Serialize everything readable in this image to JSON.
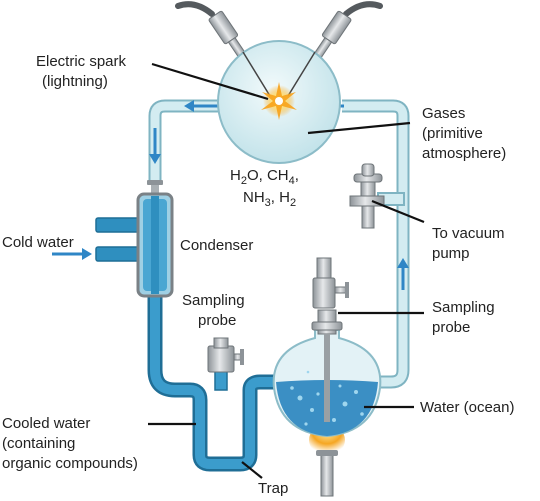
{
  "labels": {
    "electric_spark": [
      "Electric spark",
      "(lightning)"
    ],
    "gases": [
      "Gases",
      "(primitive",
      "atmosphere)"
    ],
    "formula_line1": [
      "H",
      "2",
      "O, CH",
      "4",
      ","
    ],
    "formula_line2": [
      "NH",
      "3",
      ", H",
      "2"
    ],
    "to_vacuum_pump": [
      "To vacuum",
      "pump"
    ],
    "cold_water": "Cold water",
    "condenser": "Condenser",
    "sampling_probe_left": [
      "Sampling",
      "probe"
    ],
    "sampling_probe_right": [
      "Sampling",
      "probe"
    ],
    "water_ocean": "Water (ocean)",
    "cooled_water": [
      "Cooled water",
      "(containing",
      "organic compounds)"
    ],
    "trap": "Trap"
  },
  "colors": {
    "gas_tube": "#c8e6ec",
    "gas_tube_edge": "#7fb4c2",
    "water_tube": "#2f8fbf",
    "water_tube_edge": "#1f6e96",
    "flow_arrow": "#2f86c6",
    "spark": "#f7a21b",
    "flame": "#f5a623",
    "metal": "#b7bcc0"
  }
}
